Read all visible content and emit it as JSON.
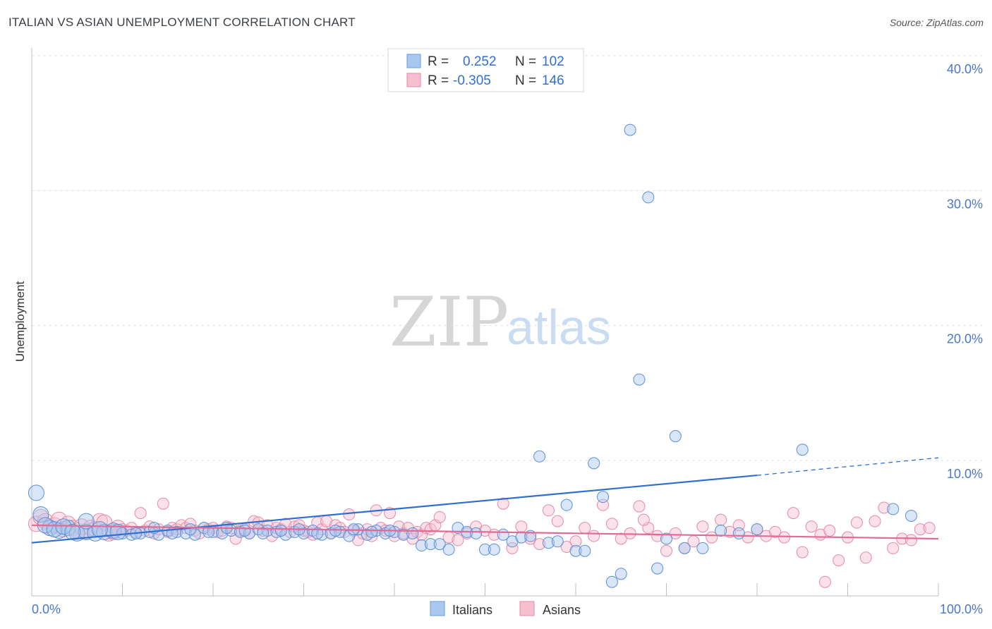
{
  "title": "ITALIAN VS ASIAN UNEMPLOYMENT CORRELATION CHART",
  "source": "Source: ZipAtlas.com",
  "watermark": {
    "zip": "ZIP",
    "atlas": "atlas"
  },
  "legend": {
    "r_label": "R =",
    "n_label": "N =",
    "rows": [
      {
        "r": "0.252",
        "n": "102",
        "color": "#a9c8f0",
        "stroke": "#6a9bd8"
      },
      {
        "r": "-0.305",
        "n": "146",
        "color": "#f6bfd0",
        "stroke": "#e48aa8"
      }
    ]
  },
  "bottom_legend": [
    {
      "label": "Italians",
      "color": "#a9c8f0",
      "stroke": "#6a9bd8"
    },
    {
      "label": "Asians",
      "color": "#f6bfd0",
      "stroke": "#e48aa8"
    }
  ],
  "chart_data": {
    "type": "scatter",
    "title": "ITALIAN VS ASIAN UNEMPLOYMENT CORRELATION CHART",
    "xlabel": "",
    "ylabel": "Unemployment",
    "xlim": [
      0,
      100
    ],
    "ylim": [
      0,
      40
    ],
    "x_tick_labels": [
      "0.0%",
      "100.0%"
    ],
    "y_ticks": [
      10,
      20,
      30,
      40
    ],
    "y_tick_labels": [
      "10.0%",
      "20.0%",
      "30.0%",
      "40.0%"
    ],
    "grid": true,
    "legend_position": "top-center",
    "series": [
      {
        "name": "Italians",
        "color": "#5b8fd6",
        "points": [
          [
            0.5,
            7.6
          ],
          [
            1,
            6.0
          ],
          [
            2,
            5.0
          ],
          [
            3,
            4.8
          ],
          [
            4,
            5.0
          ],
          [
            5,
            4.6
          ],
          [
            6,
            4.7
          ],
          [
            7,
            4.6
          ],
          [
            8,
            4.7
          ],
          [
            9,
            4.8
          ],
          [
            10,
            4.6
          ],
          [
            11,
            4.5
          ],
          [
            12,
            4.6
          ],
          [
            13,
            4.7
          ],
          [
            14,
            4.5
          ],
          [
            15,
            4.8
          ],
          [
            16,
            4.7
          ],
          [
            17,
            4.6
          ],
          [
            18,
            4.5
          ],
          [
            19,
            5.0
          ],
          [
            20,
            4.7
          ],
          [
            21,
            4.6
          ],
          [
            22,
            4.8
          ],
          [
            23,
            4.7
          ],
          [
            24,
            4.6
          ],
          [
            25,
            4.9
          ],
          [
            26,
            4.8
          ],
          [
            27,
            4.7
          ],
          [
            28,
            4.5
          ],
          [
            29,
            4.7
          ],
          [
            30,
            4.6
          ],
          [
            31,
            4.8
          ],
          [
            32,
            4.5
          ],
          [
            33,
            4.6
          ],
          [
            34,
            4.7
          ],
          [
            35,
            4.4
          ],
          [
            36,
            4.9
          ],
          [
            37,
            4.5
          ],
          [
            38,
            4.8
          ],
          [
            39,
            4.6
          ],
          [
            40,
            4.7
          ],
          [
            41,
            4.5
          ],
          [
            42,
            4.6
          ],
          [
            43,
            3.7
          ],
          [
            44,
            3.8
          ],
          [
            45,
            3.8
          ],
          [
            46,
            3.4
          ],
          [
            47,
            5.0
          ],
          [
            48,
            4.7
          ],
          [
            49,
            4.6
          ],
          [
            50,
            3.4
          ],
          [
            51,
            3.4
          ],
          [
            52,
            4.5
          ],
          [
            53,
            4.0
          ],
          [
            54,
            4.3
          ],
          [
            55,
            4.4
          ],
          [
            56,
            10.3
          ],
          [
            57,
            3.9
          ],
          [
            58,
            4.0
          ],
          [
            59,
            6.7
          ],
          [
            60,
            3.3
          ],
          [
            61,
            3.3
          ],
          [
            62,
            9.8
          ],
          [
            63,
            7.3
          ],
          [
            64,
            1.0
          ],
          [
            65,
            1.6
          ],
          [
            66,
            34.5
          ],
          [
            67,
            16.0
          ],
          [
            68,
            29.5
          ],
          [
            69,
            2.0
          ],
          [
            70,
            4.2
          ],
          [
            71,
            11.8
          ],
          [
            72,
            3.5
          ],
          [
            74,
            3.5
          ],
          [
            85,
            10.8
          ],
          [
            95,
            6.4
          ],
          [
            97,
            5.9
          ],
          [
            76,
            4.8
          ],
          [
            78,
            4.6
          ],
          [
            80,
            4.9
          ],
          [
            1.5,
            5.2
          ],
          [
            2.5,
            4.9
          ],
          [
            3.5,
            5.1
          ],
          [
            4.5,
            4.7
          ],
          [
            6,
            5.5
          ],
          [
            7.5,
            4.9
          ],
          [
            9.5,
            4.7
          ],
          [
            11.5,
            4.6
          ],
          [
            13.5,
            5.0
          ],
          [
            15.5,
            4.6
          ],
          [
            17.5,
            4.9
          ],
          [
            19.5,
            4.7
          ],
          [
            21.5,
            5.0
          ],
          [
            23.5,
            4.8
          ],
          [
            25.5,
            4.6
          ],
          [
            27.5,
            4.8
          ],
          [
            29.5,
            4.9
          ],
          [
            31.5,
            4.6
          ],
          [
            33.5,
            4.8
          ],
          [
            35.5,
            4.9
          ],
          [
            37.5,
            4.7
          ],
          [
            39.5,
            4.8
          ]
        ],
        "trend": {
          "x_start": 0,
          "y_start": 3.9,
          "x_solid_end": 80,
          "y_solid_end": 8.9,
          "x_end": 100,
          "y_end": 10.2
        }
      },
      {
        "name": "Asians",
        "color": "#e87aa0",
        "points": [
          [
            0.5,
            5.3
          ],
          [
            1,
            5.8
          ],
          [
            1.5,
            5.5
          ],
          [
            2,
            5.0
          ],
          [
            2.5,
            5.2
          ],
          [
            3,
            5.6
          ],
          [
            3.5,
            4.9
          ],
          [
            4,
            5.3
          ],
          [
            4.5,
            5.0
          ],
          [
            5,
            4.8
          ],
          [
            5.5,
            5.1
          ],
          [
            6,
            4.7
          ],
          [
            6.5,
            5.0
          ],
          [
            7,
            4.9
          ],
          [
            7.5,
            5.5
          ],
          [
            8,
            5.4
          ],
          [
            8.5,
            4.6
          ],
          [
            9,
            4.7
          ],
          [
            9.5,
            5.0
          ],
          [
            10,
            4.9
          ],
          [
            10.5,
            4.8
          ],
          [
            11,
            5.0
          ],
          [
            11.5,
            4.7
          ],
          [
            12,
            6.1
          ],
          [
            12.5,
            4.8
          ],
          [
            13,
            5.1
          ],
          [
            13.5,
            4.6
          ],
          [
            14,
            4.9
          ],
          [
            14.5,
            6.8
          ],
          [
            15,
            4.7
          ],
          [
            15.5,
            5.0
          ],
          [
            16,
            4.9
          ],
          [
            16.5,
            5.2
          ],
          [
            17,
            5.0
          ],
          [
            17.5,
            5.3
          ],
          [
            18,
            4.8
          ],
          [
            18.5,
            4.6
          ],
          [
            19,
            5.0
          ],
          [
            19.5,
            4.9
          ],
          [
            20,
            5.0
          ],
          [
            20.5,
            4.7
          ],
          [
            21,
            4.8
          ],
          [
            21.5,
            5.1
          ],
          [
            22,
            5.0
          ],
          [
            22.5,
            4.2
          ],
          [
            23,
            4.8
          ],
          [
            23.5,
            4.9
          ],
          [
            24,
            4.6
          ],
          [
            24.5,
            5.5
          ],
          [
            25,
            5.4
          ],
          [
            25.5,
            4.8
          ],
          [
            26,
            5.2
          ],
          [
            26.5,
            4.4
          ],
          [
            27,
            5.0
          ],
          [
            27.5,
            4.9
          ],
          [
            28,
            5.3
          ],
          [
            28.5,
            4.7
          ],
          [
            29,
            5.1
          ],
          [
            29.5,
            5.2
          ],
          [
            30,
            4.8
          ],
          [
            30.5,
            4.7
          ],
          [
            31,
            4.5
          ],
          [
            31.5,
            5.4
          ],
          [
            32,
            4.9
          ],
          [
            32.5,
            5.5
          ],
          [
            33,
            4.6
          ],
          [
            33.5,
            5.2
          ],
          [
            34,
            5.0
          ],
          [
            34.5,
            4.7
          ],
          [
            35,
            6.0
          ],
          [
            35.5,
            4.8
          ],
          [
            36,
            4.1
          ],
          [
            36.5,
            4.6
          ],
          [
            37,
            4.9
          ],
          [
            37.5,
            4.4
          ],
          [
            38,
            6.3
          ],
          [
            38.5,
            5.0
          ],
          [
            39,
            4.8
          ],
          [
            39.5,
            6.1
          ],
          [
            40,
            4.4
          ],
          [
            40.5,
            5.1
          ],
          [
            41,
            4.6
          ],
          [
            41.5,
            5.0
          ],
          [
            42,
            4.2
          ],
          [
            42.5,
            4.7
          ],
          [
            43,
            4.5
          ],
          [
            43.5,
            5.0
          ],
          [
            44,
            4.9
          ],
          [
            44.5,
            5.2
          ],
          [
            45,
            5.8
          ],
          [
            46,
            4.3
          ],
          [
            47,
            4.1
          ],
          [
            48,
            4.6
          ],
          [
            49,
            5.1
          ],
          [
            50,
            4.8
          ],
          [
            51,
            4.5
          ],
          [
            52,
            6.8
          ],
          [
            53,
            3.5
          ],
          [
            54,
            5.1
          ],
          [
            55,
            4.2
          ],
          [
            56,
            3.8
          ],
          [
            57,
            6.3
          ],
          [
            58,
            5.5
          ],
          [
            59,
            3.6
          ],
          [
            60,
            4.0
          ],
          [
            61,
            5.0
          ],
          [
            62,
            4.4
          ],
          [
            63,
            6.7
          ],
          [
            64,
            5.3
          ],
          [
            65,
            4.2
          ],
          [
            66,
            4.6
          ],
          [
            67,
            6.6
          ],
          [
            68,
            5.0
          ],
          [
            69,
            4.4
          ],
          [
            70,
            3.3
          ],
          [
            71,
            4.6
          ],
          [
            72,
            3.5
          ],
          [
            73,
            4.0
          ],
          [
            74,
            5.1
          ],
          [
            75,
            4.3
          ],
          [
            76,
            5.6
          ],
          [
            77,
            4.7
          ],
          [
            78,
            5.2
          ],
          [
            79,
            4.3
          ],
          [
            80,
            4.9
          ],
          [
            81,
            4.4
          ],
          [
            82,
            4.7
          ],
          [
            83,
            4.3
          ],
          [
            84,
            6.1
          ],
          [
            85,
            3.2
          ],
          [
            86,
            5.1
          ],
          [
            87,
            4.5
          ],
          [
            88,
            4.8
          ],
          [
            89,
            2.6
          ],
          [
            90,
            4.3
          ],
          [
            91,
            5.4
          ],
          [
            92,
            2.8
          ],
          [
            93,
            5.5
          ],
          [
            94,
            6.5
          ],
          [
            95,
            3.5
          ],
          [
            96,
            4.2
          ],
          [
            97,
            4.1
          ],
          [
            98,
            4.9
          ],
          [
            99,
            5.0
          ],
          [
            87.5,
            1.0
          ],
          [
            67.5,
            5.6
          ]
        ],
        "trend": {
          "x_start": 0,
          "y_start": 5.2,
          "x_end": 100,
          "y_end": 4.2
        }
      }
    ]
  }
}
